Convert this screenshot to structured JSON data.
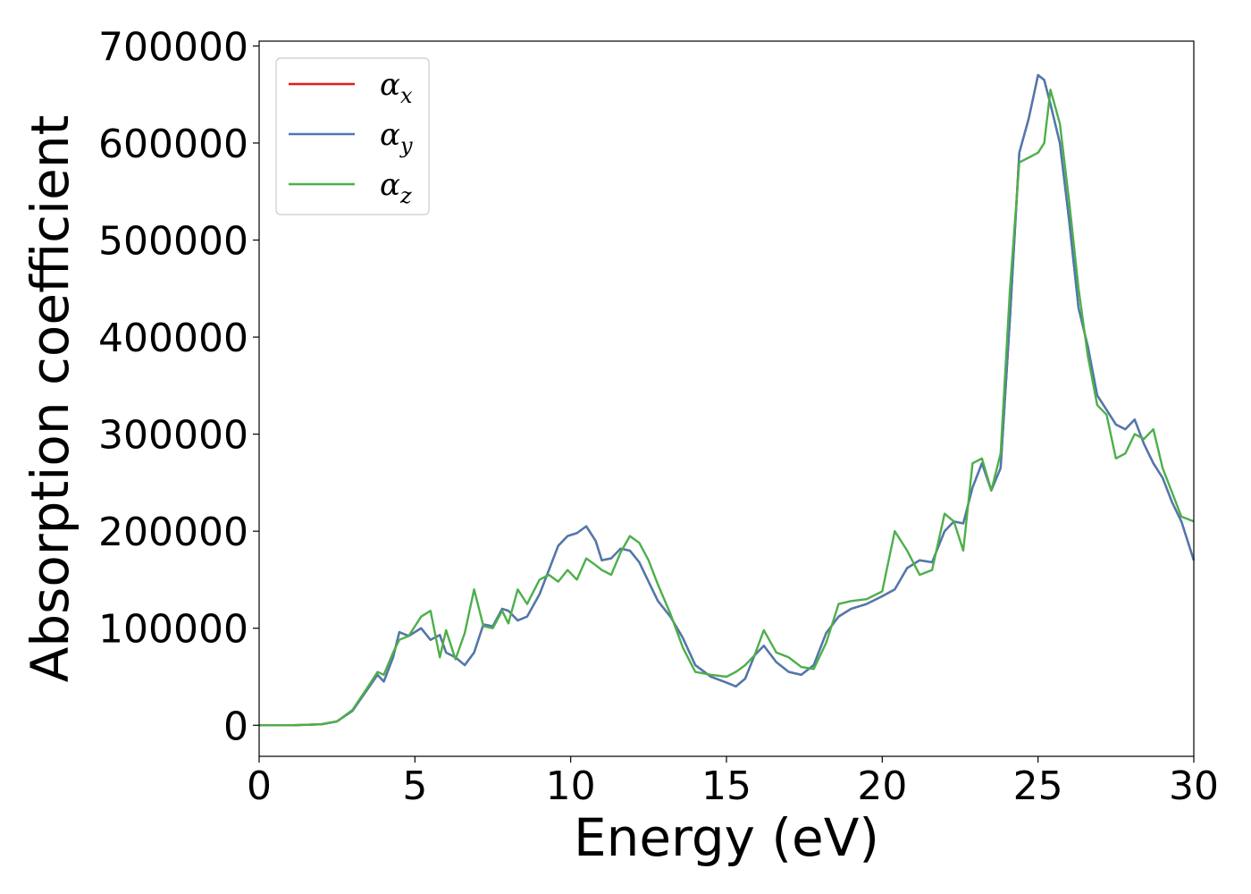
{
  "chart_data": {
    "type": "line",
    "xlabel": "Energy (eV)",
    "ylabel": "Absorption coefficient",
    "xlim": [
      0,
      30
    ],
    "ylim": [
      -32000,
      705000
    ],
    "xticks": [
      0,
      5,
      10,
      15,
      20,
      25,
      30
    ],
    "yticks": [
      0,
      100000,
      200000,
      300000,
      400000,
      500000,
      600000,
      700000
    ],
    "grid": false,
    "legend": "top-left",
    "series": [
      {
        "name": "α",
        "subscript": "x",
        "color": "#e41a1c",
        "x": [
          0,
          1,
          2,
          2.5,
          3,
          3.5,
          3.8,
          4.0,
          4.3,
          4.5,
          4.8,
          5.2,
          5.5,
          5.8,
          6.0,
          6.3,
          6.6,
          6.9,
          7.2,
          7.5,
          7.8,
          8.0,
          8.3,
          8.6,
          9.0,
          9.3,
          9.6,
          9.9,
          10.2,
          10.5,
          10.8,
          11.0,
          11.3,
          11.6,
          11.9,
          12.2,
          12.5,
          12.8,
          13.2,
          13.6,
          14.0,
          14.5,
          15.0,
          15.3,
          15.6,
          15.9,
          16.2,
          16.6,
          17.0,
          17.4,
          17.8,
          18.2,
          18.6,
          19.0,
          19.5,
          20.0,
          20.4,
          20.8,
          21.2,
          21.6,
          22.0,
          22.3,
          22.6,
          22.9,
          23.2,
          23.5,
          23.8,
          24.1,
          24.4,
          24.7,
          25.0,
          25.2,
          25.4,
          25.7,
          26.0,
          26.3,
          26.6,
          26.9,
          27.2,
          27.5,
          27.8,
          28.1,
          28.4,
          28.7,
          29.0,
          29.3,
          29.6,
          30.0
        ],
        "y": [
          0,
          0,
          1000,
          4000,
          15000,
          38000,
          52000,
          45000,
          70000,
          96000,
          92000,
          100000,
          88000,
          93000,
          75000,
          70000,
          62000,
          75000,
          104000,
          102000,
          120000,
          118000,
          108000,
          112000,
          135000,
          160000,
          185000,
          195000,
          198000,
          205000,
          190000,
          170000,
          172000,
          182000,
          180000,
          168000,
          148000,
          128000,
          112000,
          90000,
          62000,
          50000,
          44000,
          40000,
          48000,
          72000,
          82000,
          65000,
          55000,
          52000,
          62000,
          95000,
          112000,
          120000,
          125000,
          133000,
          140000,
          162000,
          170000,
          168000,
          200000,
          210000,
          208000,
          245000,
          270000,
          242000,
          265000,
          420000,
          590000,
          625000,
          670000,
          665000,
          640000,
          600000,
          520000,
          430000,
          390000,
          340000,
          325000,
          310000,
          305000,
          315000,
          290000,
          270000,
          255000,
          230000,
          210000,
          170000
        ]
      },
      {
        "name": "α",
        "subscript": "y",
        "color": "#4a7ab0",
        "x": [
          0,
          1,
          2,
          2.5,
          3,
          3.5,
          3.8,
          4.0,
          4.3,
          4.5,
          4.8,
          5.2,
          5.5,
          5.8,
          6.0,
          6.3,
          6.6,
          6.9,
          7.2,
          7.5,
          7.8,
          8.0,
          8.3,
          8.6,
          9.0,
          9.3,
          9.6,
          9.9,
          10.2,
          10.5,
          10.8,
          11.0,
          11.3,
          11.6,
          11.9,
          12.2,
          12.5,
          12.8,
          13.2,
          13.6,
          14.0,
          14.5,
          15.0,
          15.3,
          15.6,
          15.9,
          16.2,
          16.6,
          17.0,
          17.4,
          17.8,
          18.2,
          18.6,
          19.0,
          19.5,
          20.0,
          20.4,
          20.8,
          21.2,
          21.6,
          22.0,
          22.3,
          22.6,
          22.9,
          23.2,
          23.5,
          23.8,
          24.1,
          24.4,
          24.7,
          25.0,
          25.2,
          25.4,
          25.7,
          26.0,
          26.3,
          26.6,
          26.9,
          27.2,
          27.5,
          27.8,
          28.1,
          28.4,
          28.7,
          29.0,
          29.3,
          29.6,
          30.0
        ],
        "y": [
          0,
          0,
          1000,
          4000,
          15000,
          38000,
          52000,
          45000,
          70000,
          96000,
          92000,
          100000,
          88000,
          93000,
          75000,
          70000,
          62000,
          75000,
          104000,
          102000,
          120000,
          118000,
          108000,
          112000,
          135000,
          160000,
          185000,
          195000,
          198000,
          205000,
          190000,
          170000,
          172000,
          182000,
          180000,
          168000,
          148000,
          128000,
          112000,
          90000,
          62000,
          50000,
          44000,
          40000,
          48000,
          72000,
          82000,
          65000,
          55000,
          52000,
          62000,
          95000,
          112000,
          120000,
          125000,
          133000,
          140000,
          162000,
          170000,
          168000,
          200000,
          210000,
          208000,
          245000,
          270000,
          242000,
          265000,
          420000,
          590000,
          625000,
          670000,
          665000,
          640000,
          600000,
          520000,
          430000,
          390000,
          340000,
          325000,
          310000,
          305000,
          315000,
          290000,
          270000,
          255000,
          230000,
          210000,
          170000
        ]
      },
      {
        "name": "α",
        "subscript": "z",
        "color": "#4daf4a",
        "x": [
          0,
          1,
          2,
          2.5,
          3,
          3.5,
          3.8,
          4.0,
          4.3,
          4.5,
          4.8,
          5.2,
          5.5,
          5.8,
          6.0,
          6.3,
          6.6,
          6.9,
          7.2,
          7.5,
          7.8,
          8.0,
          8.3,
          8.6,
          9.0,
          9.3,
          9.6,
          9.9,
          10.2,
          10.5,
          10.8,
          11.0,
          11.3,
          11.6,
          11.9,
          12.2,
          12.5,
          12.8,
          13.2,
          13.6,
          14.0,
          14.5,
          15.0,
          15.3,
          15.6,
          15.9,
          16.2,
          16.6,
          17.0,
          17.4,
          17.8,
          18.2,
          18.6,
          19.0,
          19.5,
          20.0,
          20.4,
          20.8,
          21.2,
          21.6,
          22.0,
          22.3,
          22.6,
          22.9,
          23.2,
          23.5,
          23.8,
          24.1,
          24.4,
          24.7,
          25.0,
          25.2,
          25.4,
          25.7,
          26.0,
          26.3,
          26.6,
          26.9,
          27.2,
          27.5,
          27.8,
          28.1,
          28.4,
          28.7,
          29.0,
          29.3,
          29.6,
          30.0
        ],
        "y": [
          0,
          0,
          1000,
          4000,
          16000,
          40000,
          55000,
          52000,
          75000,
          88000,
          92000,
          112000,
          118000,
          70000,
          98000,
          68000,
          95000,
          140000,
          102000,
          100000,
          118000,
          105000,
          140000,
          125000,
          150000,
          155000,
          148000,
          160000,
          150000,
          172000,
          165000,
          160000,
          155000,
          178000,
          195000,
          188000,
          170000,
          145000,
          115000,
          80000,
          55000,
          52000,
          50000,
          55000,
          62000,
          72000,
          98000,
          75000,
          70000,
          60000,
          58000,
          85000,
          125000,
          128000,
          130000,
          138000,
          200000,
          180000,
          155000,
          160000,
          218000,
          210000,
          180000,
          270000,
          275000,
          242000,
          280000,
          450000,
          580000,
          585000,
          590000,
          600000,
          655000,
          620000,
          540000,
          450000,
          380000,
          330000,
          320000,
          275000,
          280000,
          300000,
          295000,
          305000,
          265000,
          240000,
          215000,
          210000
        ]
      }
    ]
  }
}
